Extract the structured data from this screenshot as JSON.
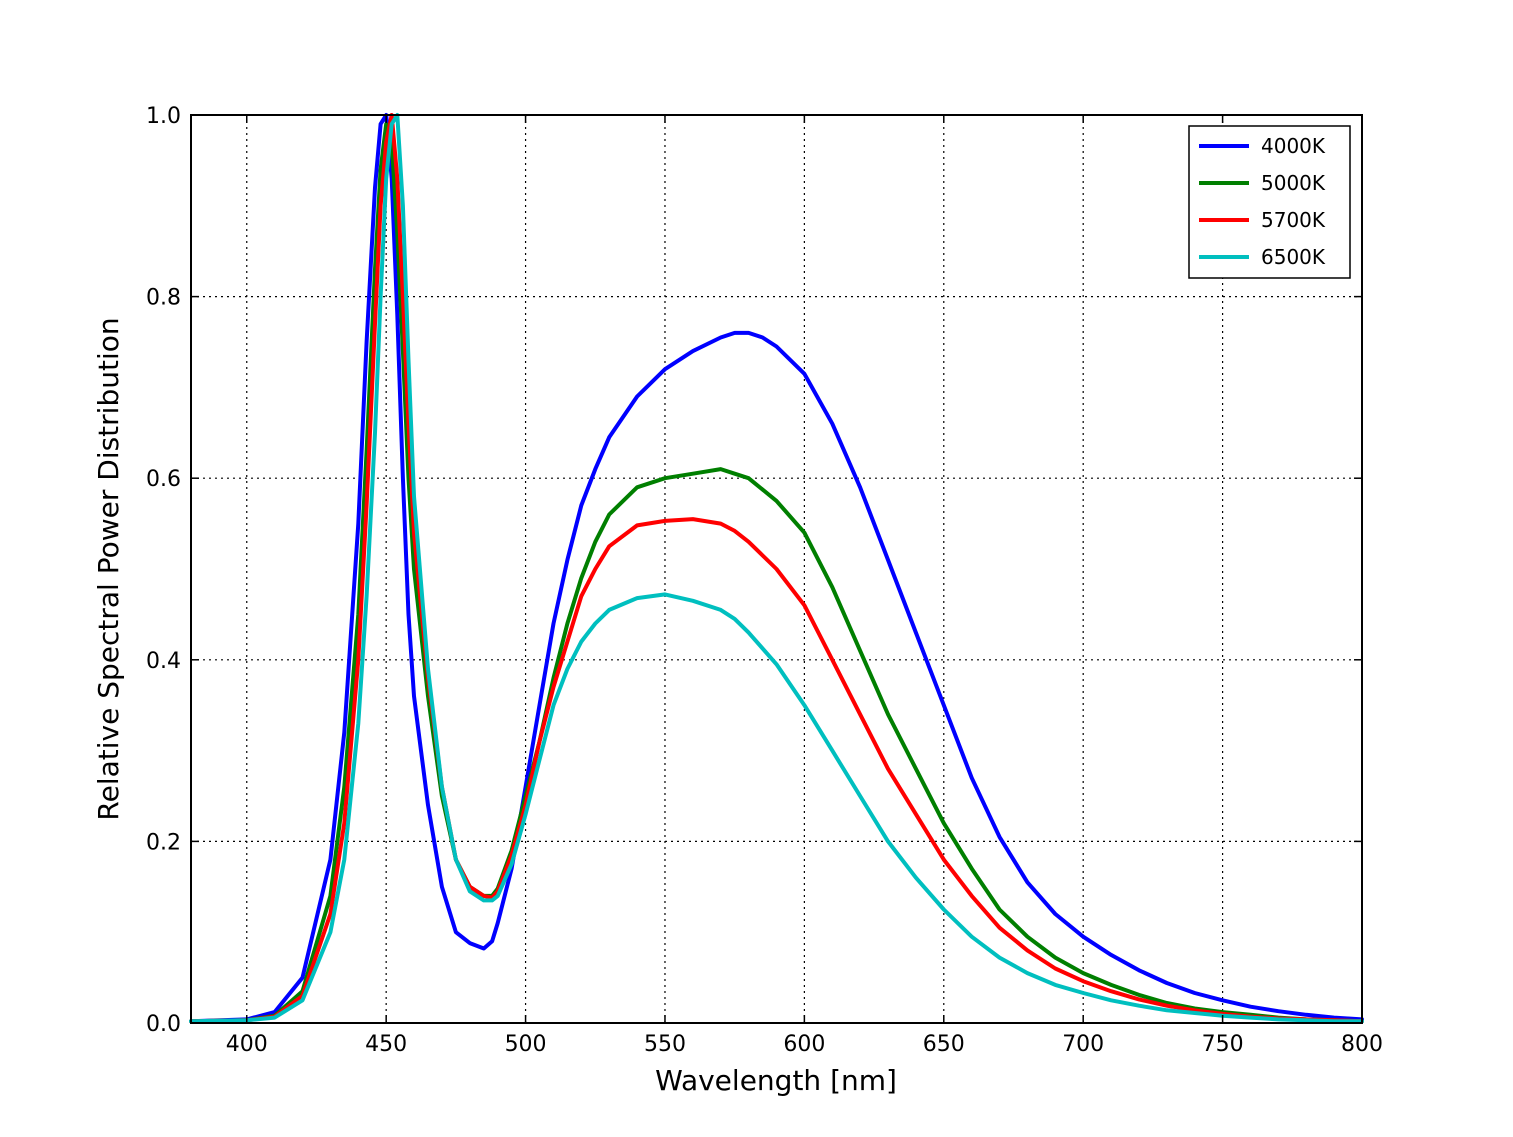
{
  "chart_data": {
    "type": "line",
    "title": "",
    "xlabel": "Wavelength [nm]",
    "ylabel": "Relative Spectral Power Distribution",
    "xlim": [
      380,
      800
    ],
    "ylim": [
      0.0,
      1.0
    ],
    "xticks": [
      400,
      450,
      500,
      550,
      600,
      650,
      700,
      750,
      800
    ],
    "xtick_labels": [
      "400",
      "450",
      "500",
      "550",
      "600",
      "650",
      "700",
      "750",
      "800"
    ],
    "yticks": [
      0.0,
      0.2,
      0.4,
      0.6,
      0.8,
      1.0
    ],
    "ytick_labels": [
      "0.0",
      "0.2",
      "0.4",
      "0.6",
      "0.8",
      "1.0"
    ],
    "grid": true,
    "legend_position": "top-right",
    "series": [
      {
        "name": "4000K",
        "color": "#0000ff",
        "x": [
          380,
          400,
          410,
          420,
          430,
          435,
          440,
          443,
          446,
          448,
          450,
          452,
          454,
          456,
          458,
          460,
          465,
          470,
          475,
          480,
          485,
          488,
          490,
          495,
          500,
          505,
          510,
          515,
          520,
          525,
          530,
          540,
          550,
          560,
          570,
          575,
          580,
          585,
          590,
          600,
          610,
          620,
          630,
          640,
          650,
          660,
          670,
          680,
          690,
          700,
          710,
          720,
          730,
          740,
          750,
          760,
          770,
          780,
          790,
          800
        ],
        "values": [
          0.002,
          0.004,
          0.012,
          0.05,
          0.18,
          0.32,
          0.55,
          0.75,
          0.92,
          0.99,
          1.0,
          0.93,
          0.78,
          0.6,
          0.45,
          0.36,
          0.24,
          0.15,
          0.1,
          0.088,
          0.082,
          0.09,
          0.11,
          0.17,
          0.26,
          0.35,
          0.44,
          0.51,
          0.57,
          0.61,
          0.645,
          0.69,
          0.72,
          0.74,
          0.755,
          0.76,
          0.76,
          0.755,
          0.745,
          0.715,
          0.66,
          0.59,
          0.51,
          0.43,
          0.35,
          0.27,
          0.205,
          0.155,
          0.12,
          0.095,
          0.075,
          0.058,
          0.044,
          0.033,
          0.025,
          0.018,
          0.013,
          0.009,
          0.006,
          0.004
        ]
      },
      {
        "name": "5000K",
        "color": "#007f00",
        "x": [
          380,
          400,
          410,
          420,
          430,
          435,
          440,
          443,
          446,
          448,
          450,
          452,
          454,
          456,
          458,
          460,
          465,
          470,
          475,
          480,
          485,
          488,
          490,
          495,
          500,
          505,
          510,
          515,
          520,
          525,
          530,
          540,
          550,
          560,
          570,
          575,
          580,
          590,
          600,
          610,
          620,
          630,
          640,
          650,
          660,
          670,
          680,
          690,
          700,
          710,
          720,
          730,
          740,
          750,
          760,
          770,
          780,
          790,
          800
        ],
        "values": [
          0.002,
          0.003,
          0.008,
          0.035,
          0.14,
          0.26,
          0.45,
          0.63,
          0.83,
          0.94,
          0.99,
          0.97,
          0.87,
          0.74,
          0.6,
          0.5,
          0.36,
          0.25,
          0.18,
          0.15,
          0.14,
          0.14,
          0.148,
          0.19,
          0.25,
          0.31,
          0.38,
          0.44,
          0.49,
          0.53,
          0.56,
          0.59,
          0.6,
          0.605,
          0.61,
          0.605,
          0.6,
          0.575,
          0.54,
          0.48,
          0.41,
          0.34,
          0.28,
          0.22,
          0.17,
          0.125,
          0.095,
          0.072,
          0.055,
          0.042,
          0.031,
          0.022,
          0.016,
          0.012,
          0.009,
          0.006,
          0.004,
          0.003,
          0.002
        ]
      },
      {
        "name": "5700K",
        "color": "#ff0000",
        "x": [
          380,
          400,
          410,
          420,
          430,
          435,
          440,
          443,
          446,
          448,
          450,
          452,
          454,
          456,
          458,
          460,
          465,
          470,
          475,
          480,
          485,
          488,
          490,
          495,
          500,
          505,
          510,
          515,
          520,
          525,
          530,
          540,
          550,
          560,
          570,
          575,
          580,
          590,
          600,
          610,
          620,
          630,
          640,
          650,
          660,
          670,
          680,
          690,
          700,
          710,
          720,
          730,
          740,
          750,
          760,
          770,
          780,
          790,
          800
        ],
        "values": [
          0.002,
          0.003,
          0.007,
          0.03,
          0.12,
          0.22,
          0.4,
          0.57,
          0.77,
          0.9,
          0.97,
          1.0,
          0.93,
          0.8,
          0.66,
          0.54,
          0.38,
          0.26,
          0.18,
          0.15,
          0.14,
          0.138,
          0.145,
          0.185,
          0.24,
          0.31,
          0.37,
          0.42,
          0.47,
          0.5,
          0.525,
          0.548,
          0.553,
          0.555,
          0.55,
          0.542,
          0.53,
          0.5,
          0.46,
          0.4,
          0.34,
          0.28,
          0.23,
          0.18,
          0.14,
          0.105,
          0.08,
          0.06,
          0.046,
          0.035,
          0.026,
          0.019,
          0.014,
          0.01,
          0.007,
          0.005,
          0.004,
          0.003,
          0.002
        ]
      },
      {
        "name": "6500K",
        "color": "#00bfbf",
        "x": [
          380,
          400,
          410,
          420,
          430,
          435,
          440,
          443,
          446,
          448,
          450,
          452,
          454,
          456,
          458,
          460,
          465,
          470,
          475,
          480,
          485,
          488,
          490,
          495,
          500,
          505,
          510,
          515,
          520,
          525,
          530,
          540,
          550,
          560,
          570,
          575,
          580,
          590,
          600,
          610,
          620,
          630,
          640,
          650,
          660,
          670,
          680,
          690,
          700,
          710,
          720,
          730,
          740,
          750,
          760,
          770,
          780,
          790,
          800
        ],
        "values": [
          0.002,
          0.003,
          0.006,
          0.025,
          0.1,
          0.18,
          0.33,
          0.47,
          0.65,
          0.8,
          0.93,
          0.99,
          1.0,
          0.9,
          0.73,
          0.58,
          0.39,
          0.26,
          0.18,
          0.145,
          0.135,
          0.135,
          0.14,
          0.175,
          0.23,
          0.29,
          0.35,
          0.39,
          0.42,
          0.44,
          0.455,
          0.468,
          0.472,
          0.465,
          0.455,
          0.445,
          0.43,
          0.395,
          0.35,
          0.3,
          0.25,
          0.2,
          0.16,
          0.125,
          0.095,
          0.072,
          0.055,
          0.042,
          0.033,
          0.025,
          0.019,
          0.014,
          0.011,
          0.008,
          0.006,
          0.004,
          0.003,
          0.002,
          0.002
        ]
      }
    ]
  }
}
